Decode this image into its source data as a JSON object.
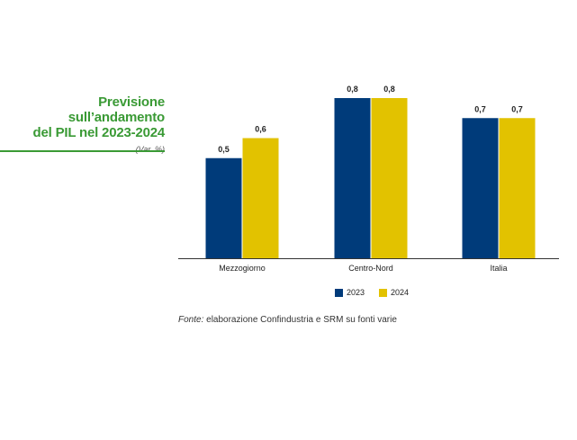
{
  "title_lines": [
    "Previsione sull’andamento",
    "del PIL nel 2023-2024"
  ],
  "subtitle": "(Var. %)",
  "source": {
    "lead": "Fonte:",
    "text": " elaborazione Confindustria e SRM su fonti varie"
  },
  "colors": {
    "series_2023": "#003b7a",
    "series_2024": "#e2c200",
    "title": "#3a9a35"
  },
  "chart_data": {
    "type": "bar",
    "title": "Previsione sull’andamento del PIL nel 2023-2024",
    "categories": [
      "Mezzogiorno",
      "Centro-Nord",
      "Italia"
    ],
    "series": [
      {
        "name": "2023",
        "values": [
          0.5,
          0.8,
          0.7
        ],
        "labels": [
          "0,5",
          "0,8",
          "0,7"
        ]
      },
      {
        "name": "2024",
        "values": [
          0.6,
          0.8,
          0.7
        ],
        "labels": [
          "0,6",
          "0,8",
          "0,7"
        ]
      }
    ],
    "ylim": [
      0,
      0.8
    ],
    "grid": false,
    "legend": "bottom"
  }
}
